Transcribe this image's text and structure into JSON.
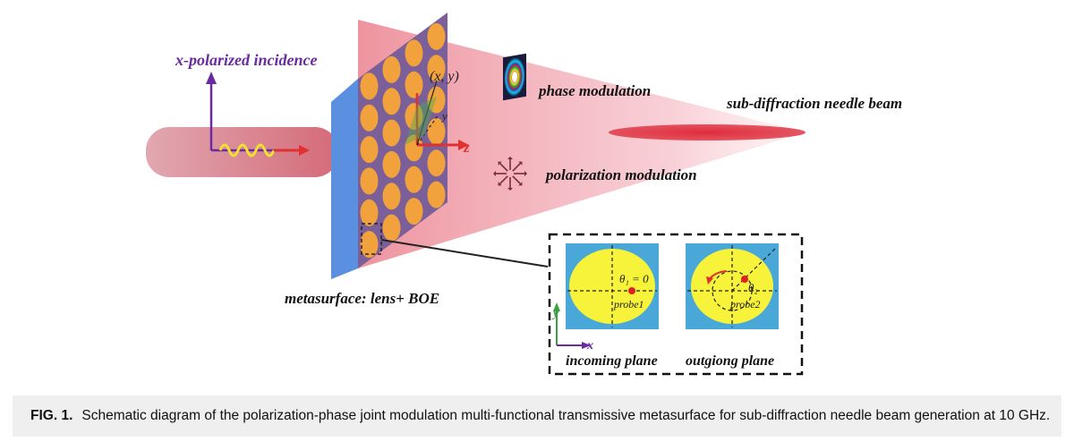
{
  "labels": {
    "incidence": "x-polarized incidence",
    "coord": "(x, y)",
    "y_axis_small": "y",
    "z_axis": "z",
    "phase": "phase modulation",
    "polarization": "polarization modulation",
    "needle": "sub-diffraction needle beam",
    "metasurface": "metasurface: lens+ BOE"
  },
  "inset": {
    "theta1": "θ₁ = 0",
    "theta2": "θ₂",
    "probe1": "probe1",
    "probe2": "probe2",
    "axis_y": "y",
    "axis_x": "x",
    "incoming": "incoming plane",
    "outgoing": "outgiong plane"
  },
  "caption": {
    "fig": "FIG. 1.",
    "text": "Schematic diagram of the polarization-phase joint modulation multi-functional transmissive metasurface for sub-diffraction needle beam generation at 10 GHz."
  },
  "colors": {
    "beam": "#e8707a",
    "cone": "#f2a6b0",
    "panel_front": "#7a5f98",
    "panel_side": "#5b8fe0",
    "cell": "#f2a23c",
    "inset_bg": "#4aa8d8",
    "inset_disk": "#f7f23a",
    "accent_arrow": "#e03030",
    "axis_purple": "#6a2aa0"
  }
}
